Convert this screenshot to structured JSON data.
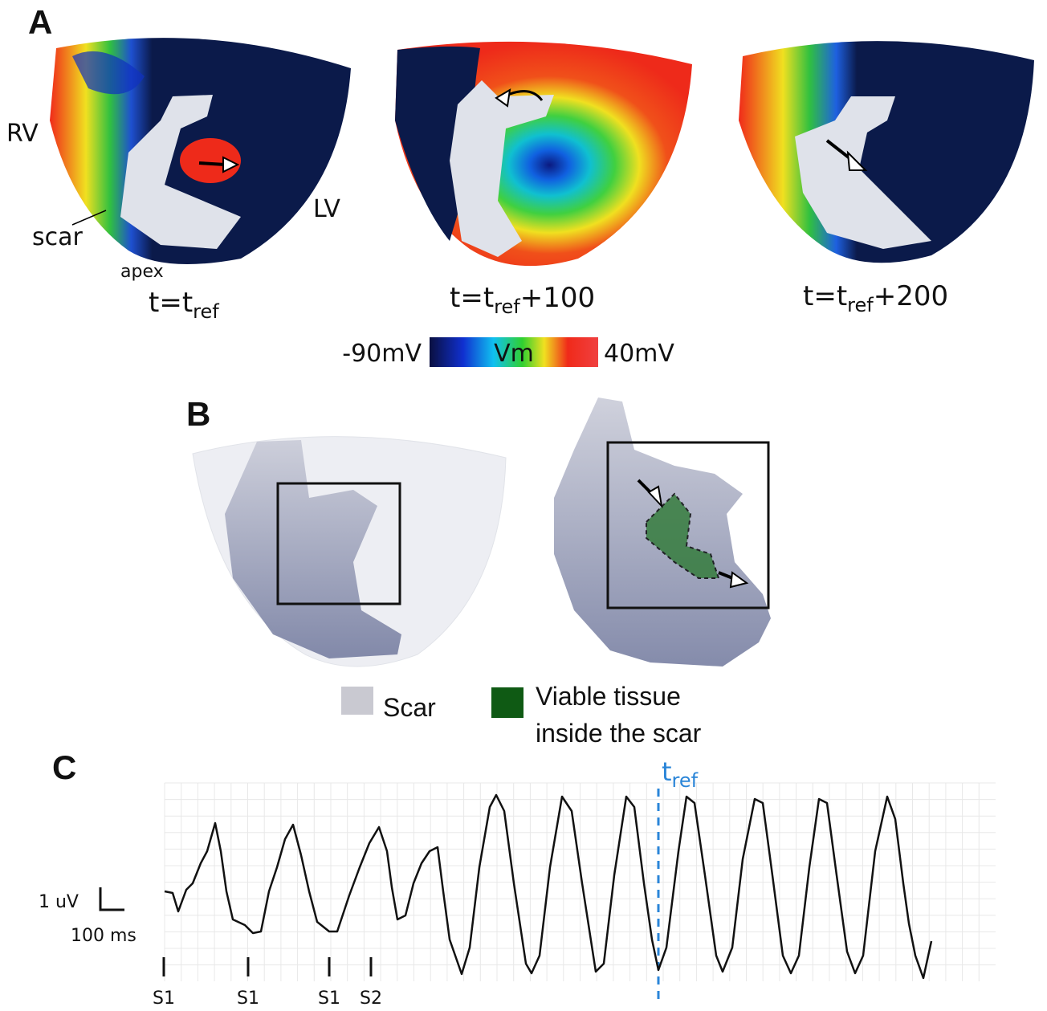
{
  "panel_a": {
    "label": "A",
    "labels": {
      "rv": "RV",
      "lv": "LV",
      "scar": "scar",
      "apex": "apex"
    },
    "snapshots": [
      {
        "prefix": "t=t",
        "subscript": "ref"
      },
      {
        "prefix": "t=t",
        "subscript": "ref",
        "suffix": "+100"
      },
      {
        "prefix": "t=t",
        "subscript": "ref",
        "suffix": "+200"
      }
    ],
    "colorbar": {
      "min_label": "-90mV",
      "title": "Vm",
      "max_label": "40mV"
    }
  },
  "panel_b": {
    "label": "B",
    "legend": [
      {
        "name": "Scar",
        "color": "#c9c9d1"
      },
      {
        "name": [
          "Viable tissue",
          "inside the scar"
        ],
        "color": "#0f5a14"
      }
    ]
  },
  "panel_c": {
    "label": "C",
    "marker": {
      "text": "t",
      "subscript": "ref"
    },
    "scale_bar": {
      "vertical": "1 uV",
      "horizontal": "100 ms"
    },
    "stimuli": [
      "S1",
      "S1",
      "S1",
      "S2"
    ]
  }
}
